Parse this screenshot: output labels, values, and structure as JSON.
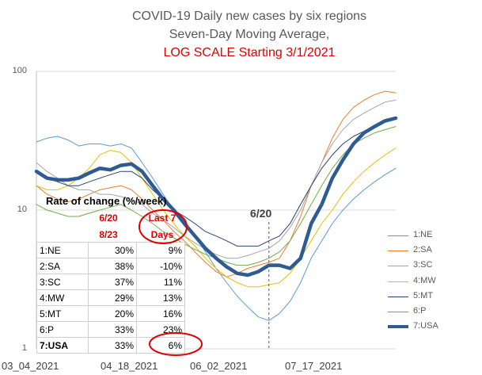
{
  "chart_data": {
    "type": "line",
    "title": "COVID-19 Daily new cases by six regions",
    "subtitle": "Seven-Day Moving Average,",
    "subtitle2": "LOG SCALE Starting 3/1/2021",
    "yscale": "log",
    "ylim": [
      1,
      100
    ],
    "yticks": [
      "1",
      "10",
      "100"
    ],
    "xticks": [
      "03_04_2021",
      "04_18_2021",
      "06_02_2021",
      "07_17_2021"
    ],
    "x_day_of_tick": [
      0,
      45,
      90,
      135
    ],
    "x_days": [
      0,
      5,
      10,
      15,
      20,
      25,
      30,
      35,
      40,
      45,
      50,
      55,
      60,
      65,
      70,
      75,
      80,
      85,
      90,
      95,
      100,
      105,
      110,
      115,
      120,
      125,
      130,
      135,
      140,
      145,
      150,
      155,
      160,
      165,
      170
    ],
    "legend_position": "right",
    "series": [
      {
        "name": "1:NE",
        "color": "#5b9bd5",
        "width": 1,
        "values": [
          31,
          33,
          34,
          32,
          29,
          30,
          30,
          29,
          30,
          28,
          22,
          17,
          13,
          10,
          8,
          6.5,
          5,
          3.8,
          3,
          2.4,
          2,
          1.7,
          1.6,
          1.8,
          2.2,
          3,
          4.5,
          6,
          8,
          10,
          12,
          14,
          16,
          18,
          20
        ]
      },
      {
        "name": "2:SA",
        "color": "#ed7d31",
        "width": 1,
        "values": [
          15,
          13,
          12,
          11.5,
          12,
          13,
          14,
          14.5,
          15,
          14,
          12,
          10,
          8.5,
          7,
          6,
          5,
          4.2,
          3.6,
          3.3,
          3.5,
          3.8,
          4,
          4.2,
          4.5,
          6,
          9,
          15,
          22,
          33,
          45,
          55,
          62,
          68,
          72,
          70
        ]
      },
      {
        "name": "3:SC",
        "color": "#a5a5a5",
        "width": 1,
        "values": [
          22,
          19,
          17,
          15,
          14,
          14,
          13,
          13,
          12.5,
          12,
          11,
          9.5,
          8.5,
          7.5,
          6.5,
          5.8,
          5.2,
          4.8,
          4.5,
          4.5,
          4.7,
          5,
          5.3,
          6,
          7.5,
          10,
          15,
          22,
          30,
          38,
          45,
          50,
          55,
          60,
          62
        ]
      },
      {
        "name": "4:MW",
        "color": "#e8c000",
        "width": 1,
        "values": [
          15,
          14,
          14,
          15,
          17,
          20,
          25,
          27,
          26,
          22,
          17,
          13,
          10,
          8,
          6.5,
          5.5,
          4.5,
          3.8,
          3.3,
          3,
          2.8,
          2.8,
          2.9,
          3,
          3.5,
          4.5,
          6,
          8,
          10,
          13,
          16,
          19,
          22,
          25,
          28
        ]
      },
      {
        "name": "5:MT",
        "color": "#264478",
        "width": 1,
        "values": [
          19,
          17,
          16,
          15,
          15,
          16,
          17,
          18,
          19,
          19,
          17,
          14,
          12,
          10,
          9,
          8,
          7,
          6.5,
          6,
          5.5,
          5.5,
          5.5,
          6,
          6.5,
          8,
          11,
          15,
          20,
          25,
          30,
          34,
          37,
          40,
          43,
          45
        ]
      },
      {
        "name": "6:P",
        "color": "#70ad47",
        "width": 1,
        "values": [
          11,
          10,
          9.5,
          9,
          9,
          9.5,
          10,
          10.5,
          11,
          10,
          9,
          8,
          7,
          6.3,
          5.7,
          5.2,
          4.8,
          4.5,
          4.2,
          4,
          4,
          4.2,
          4.5,
          5,
          6,
          8,
          11,
          15,
          20,
          25,
          30,
          33,
          36,
          38,
          40
        ]
      },
      {
        "name": "7:USA",
        "color": "#2e5b91",
        "width": 4.5,
        "values": [
          19,
          17,
          16.5,
          16.5,
          17,
          18.5,
          20,
          19.5,
          21,
          21.5,
          19,
          15,
          12,
          10,
          8,
          6.5,
          5.3,
          4.5,
          3.9,
          3.5,
          3.4,
          3.6,
          4,
          4,
          3.8,
          4.5,
          8,
          11,
          17,
          23,
          30,
          36,
          40,
          44,
          46
        ]
      }
    ]
  },
  "annotation": {
    "label": "6/20"
  },
  "rate_table": {
    "title": "Rate of change (%/week)",
    "col2_header_line1": "6/20",
    "col2_header_line2": "8/23",
    "col3_header_line1": "Last 7",
    "col3_header_line2": "Days",
    "rows": [
      {
        "region": "1:NE",
        "since": "30%",
        "last7": "9%"
      },
      {
        "region": "2:SA",
        "since": "38%",
        "last7": "-10%"
      },
      {
        "region": "3:SC",
        "since": "37%",
        "last7": "11%"
      },
      {
        "region": "4:MW",
        "since": "29%",
        "last7": "13%"
      },
      {
        "region": "5:MT",
        "since": "20%",
        "last7": "16%"
      },
      {
        "region": "6:P",
        "since": "33%",
        "last7": "23%"
      },
      {
        "region": "7:USA",
        "since": "33%",
        "last7": "6%"
      }
    ]
  },
  "colors": {
    "highlight_red": "#e00000"
  }
}
